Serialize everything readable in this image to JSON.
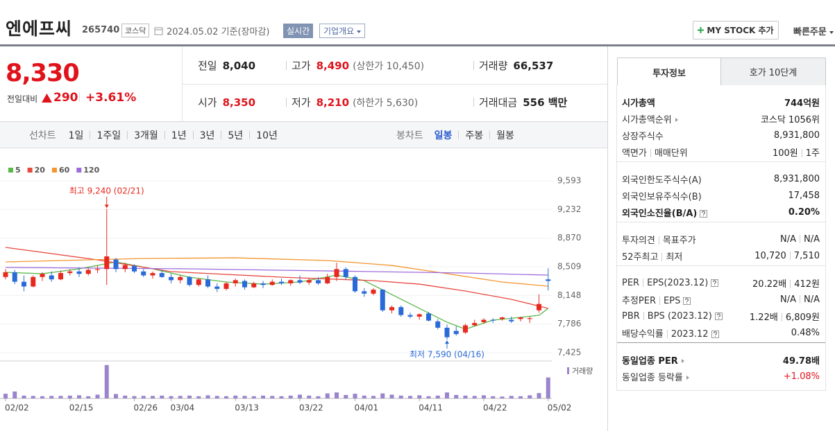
{
  "header": {
    "name": "엔에프씨",
    "code": "265740",
    "market": "코스닥",
    "date": "2024.05.02 기준(장마감)",
    "realtime": "실시간",
    "overview": "기업개요",
    "mystock": "MY STOCK 추가",
    "quick_order": "빠른주문"
  },
  "price": {
    "current": "8,330",
    "change_label": "전일대비",
    "change": "290",
    "change_pct": "+3.61%",
    "color": "#e0121b"
  },
  "summary": [
    [
      {
        "label": "전일",
        "value": "8,040"
      },
      {
        "label": "고가",
        "value": "8,490",
        "note": "(상한가 10,450)",
        "color": "#e0121b"
      },
      {
        "label": "거래량",
        "value": "66,537"
      }
    ],
    [
      {
        "label": "시가",
        "value": "8,350",
        "color": "#e0121b"
      },
      {
        "label": "저가",
        "value": "8,210",
        "note": "(하한가 5,630)",
        "color": "#e0121b"
      },
      {
        "label": "거래대금",
        "value": "556 백만"
      }
    ]
  ],
  "toolbar": {
    "line_label": "선차트",
    "line_periods": [
      "1일",
      "1주일",
      "3개월",
      "1년",
      "3년",
      "5년",
      "10년"
    ],
    "candle_label": "봉차트",
    "candle_periods": [
      "일봉",
      "주봉",
      "월봉"
    ],
    "candle_selected": 0
  },
  "chart_data": {
    "type": "candlestick",
    "categories": [
      "02/02",
      null,
      null,
      null,
      null,
      null,
      null,
      "02/15",
      null,
      null,
      null,
      null,
      null,
      null,
      "02/26",
      null,
      null,
      null,
      "03/04",
      null,
      null,
      null,
      null,
      null,
      null,
      "03/13",
      null,
      null,
      null,
      null,
      null,
      null,
      "03/22",
      null,
      null,
      null,
      null,
      null,
      "04/01",
      null,
      null,
      null,
      null,
      null,
      null,
      "04/11",
      null,
      null,
      null,
      null,
      null,
      null,
      "04/22",
      null,
      null,
      null,
      null,
      null,
      null,
      "05/02"
    ],
    "ohlc": [
      [
        8380,
        8480,
        8350,
        8440
      ],
      [
        8440,
        8470,
        8290,
        8320
      ],
      [
        8320,
        8400,
        8200,
        8260
      ],
      [
        8260,
        8400,
        8250,
        8380
      ],
      [
        8380,
        8440,
        8330,
        8420
      ],
      [
        8400,
        8450,
        8320,
        8350
      ],
      [
        8350,
        8460,
        8340,
        8430
      ],
      [
        8430,
        8480,
        8400,
        8450
      ],
      [
        8450,
        8500,
        8380,
        8420
      ],
      [
        8420,
        8490,
        8400,
        8470
      ],
      [
        8470,
        8520,
        8430,
        8480
      ],
      [
        8480,
        9240,
        8280,
        8640
      ],
      [
        8600,
        8620,
        8440,
        8480
      ],
      [
        8480,
        8560,
        8440,
        8530
      ],
      [
        8520,
        8540,
        8430,
        8450
      ],
      [
        8450,
        8480,
        8380,
        8400
      ],
      [
        8400,
        8450,
        8360,
        8430
      ],
      [
        8430,
        8470,
        8370,
        8380
      ],
      [
        8380,
        8420,
        8300,
        8340
      ],
      [
        8340,
        8400,
        8300,
        8380
      ],
      [
        8380,
        8390,
        8260,
        8280
      ],
      [
        8280,
        8370,
        8260,
        8350
      ],
      [
        8350,
        8400,
        8240,
        8260
      ],
      [
        8260,
        8300,
        8190,
        8230
      ],
      [
        8230,
        8320,
        8210,
        8300
      ],
      [
        8300,
        8360,
        8260,
        8340
      ],
      [
        8330,
        8350,
        8220,
        8250
      ],
      [
        8250,
        8320,
        8240,
        8300
      ],
      [
        8300,
        8330,
        8240,
        8280
      ],
      [
        8280,
        8350,
        8270,
        8320
      ],
      [
        8320,
        8360,
        8280,
        8300
      ],
      [
        8300,
        8350,
        8270,
        8340
      ],
      [
        8340,
        8400,
        8290,
        8310
      ],
      [
        8310,
        8360,
        8280,
        8340
      ],
      [
        8340,
        8380,
        8280,
        8300
      ],
      [
        8300,
        8420,
        8290,
        8380
      ],
      [
        8380,
        8560,
        8330,
        8480
      ],
      [
        8480,
        8500,
        8350,
        8380
      ],
      [
        8380,
        8400,
        8180,
        8200
      ],
      [
        8200,
        8240,
        8130,
        8170
      ],
      [
        8170,
        8240,
        8150,
        8220
      ],
      [
        8220,
        8230,
        7940,
        7960
      ],
      [
        7960,
        8020,
        7920,
        8000
      ],
      [
        8000,
        8020,
        7880,
        7900
      ],
      [
        7900,
        7930,
        7860,
        7880
      ],
      [
        7880,
        7920,
        7840,
        7910
      ],
      [
        7920,
        7940,
        7820,
        7830
      ],
      [
        7820,
        7850,
        7720,
        7740
      ],
      [
        7740,
        7780,
        7590,
        7620
      ],
      [
        7700,
        7760,
        7640,
        7660
      ],
      [
        7680,
        7790,
        7660,
        7770
      ],
      [
        7770,
        7840,
        7760,
        7800
      ],
      [
        7810,
        7860,
        7790,
        7840
      ],
      [
        7840,
        7860,
        7800,
        7830
      ],
      [
        7850,
        7880,
        7830,
        7870
      ],
      [
        7840,
        7880,
        7800,
        7820
      ],
      [
        7850,
        7880,
        7820,
        7870
      ],
      [
        7850,
        7880,
        7800,
        7860
      ],
      [
        7960,
        8160,
        7930,
        8040
      ],
      [
        8350,
        8490,
        8210,
        8330
      ]
    ],
    "up_color": "#e8281e",
    "down_color": "#2a6ad8",
    "ylim": [
      7425,
      9593
    ],
    "yticks": [
      {
        "value": 7425,
        "label": "7,425"
      },
      {
        "value": 7786,
        "label": "7,786"
      },
      {
        "value": 8148,
        "label": "8,148"
      },
      {
        "value": 8509,
        "label": "8,509"
      },
      {
        "value": 8870,
        "label": "8,870"
      },
      {
        "value": 9232,
        "label": "9,232"
      },
      {
        "value": 9593,
        "label": "9,593"
      }
    ],
    "grid": true,
    "moving_averages": [
      {
        "name": "5",
        "color": "#58b848",
        "x": [
          0,
          4,
          8,
          12,
          16,
          20,
          24,
          28,
          32,
          36,
          39,
          42,
          45,
          48,
          50,
          53,
          56,
          58,
          59
        ],
        "values": [
          8439,
          8421,
          8483,
          8570,
          8483,
          8378,
          8317,
          8290,
          8317,
          8404,
          8334,
          8159,
          7984,
          7810,
          7722,
          7836,
          7871,
          7897,
          7984
        ]
      },
      {
        "name": "20",
        "color": "#e5483f",
        "x": [
          0,
          10,
          18,
          30,
          40,
          45,
          50,
          55,
          59
        ],
        "values": [
          8754,
          8596,
          8448,
          8378,
          8334,
          8290,
          8203,
          8098,
          7984
        ]
      },
      {
        "name": "60",
        "color": "#f4952f",
        "x": [
          0,
          15,
          25,
          35,
          42,
          48,
          54,
          59
        ],
        "values": [
          8570,
          8614,
          8622,
          8588,
          8526,
          8422,
          8317,
          8264
        ]
      },
      {
        "name": "120",
        "color": "#9e6bdc",
        "x": [
          0,
          20,
          40,
          50,
          59
        ],
        "values": [
          8500,
          8483,
          8448,
          8430,
          8404
        ]
      }
    ],
    "volume": {
      "name": "거래량",
      "color": "#9a84cc",
      "ylim": [
        0,
        110000
      ],
      "values": [
        15000,
        22000,
        9000,
        8000,
        7000,
        8000,
        8000,
        9000,
        10000,
        7000,
        12000,
        106000,
        14000,
        9000,
        7000,
        8000,
        8000,
        9000,
        7000,
        8000,
        9000,
        7000,
        10000,
        8000,
        7000,
        9000,
        8000,
        7000,
        9000,
        8000,
        7000,
        9000,
        12000,
        9000,
        7000,
        16000,
        19000,
        11000,
        15000,
        9000,
        8000,
        16000,
        12000,
        9000,
        8000,
        10000,
        7000,
        9000,
        19000,
        11000,
        9000,
        8000,
        10000,
        7000,
        6000,
        8000,
        7000,
        10000,
        17000,
        66537
      ]
    },
    "annotations": {
      "high": "최고 9,240 (02/21)",
      "low": "최저 7,590 (04/16)"
    }
  },
  "investment": {
    "tabs": [
      "투자정보",
      "호가 10단계"
    ],
    "groups": [
      [
        {
          "label": [
            "시가총액"
          ],
          "value": [
            "744억원"
          ],
          "bold": true
        },
        {
          "label": [
            "시가총액순위"
          ],
          "arrow": true,
          "value": [
            "코스닥 1056위"
          ]
        },
        {
          "label": [
            "상장주식수"
          ],
          "value": [
            "8,931,800"
          ]
        },
        {
          "label": [
            "액면가",
            "매매단위"
          ],
          "value": [
            "100원",
            "1주"
          ]
        }
      ],
      [
        {
          "label": [
            "외국인한도주식수(A)"
          ],
          "value": [
            "8,931,800"
          ]
        },
        {
          "label": [
            "외국인보유주식수(B)"
          ],
          "value": [
            "17,458"
          ]
        },
        {
          "label": [
            "외국인소진율(B/A)"
          ],
          "help": true,
          "value": [
            "0.20%"
          ],
          "bold": true
        }
      ],
      [
        {
          "label": [
            "투자의견",
            "목표주가"
          ],
          "value": [
            "N/A",
            "N/A"
          ]
        },
        {
          "label": [
            "52주최고",
            "최저"
          ],
          "value": [
            "10,720",
            "7,510"
          ]
        }
      ],
      [
        {
          "label": [
            "PER",
            "EPS(2023.12)"
          ],
          "help": true,
          "value": [
            "20.22배",
            "412원"
          ]
        },
        {
          "label": [
            "추정PER",
            "EPS"
          ],
          "help": true,
          "value": [
            "N/A",
            "N/A"
          ]
        },
        {
          "label": [
            "PBR",
            "BPS (2023.12)"
          ],
          "help": true,
          "value": [
            "1.22배",
            "6,809원"
          ]
        },
        {
          "label": [
            "배당수익률",
            "2023.12"
          ],
          "help": true,
          "value": [
            "0.48%"
          ]
        }
      ],
      [
        {
          "label": [
            "동일업종 PER"
          ],
          "arrow": true,
          "value": [
            "49.78배"
          ],
          "bold": true
        },
        {
          "label": [
            "동일업종 등락률"
          ],
          "arrow": true,
          "value": [
            "+1.08%"
          ],
          "color": "#e0121b"
        }
      ]
    ]
  }
}
